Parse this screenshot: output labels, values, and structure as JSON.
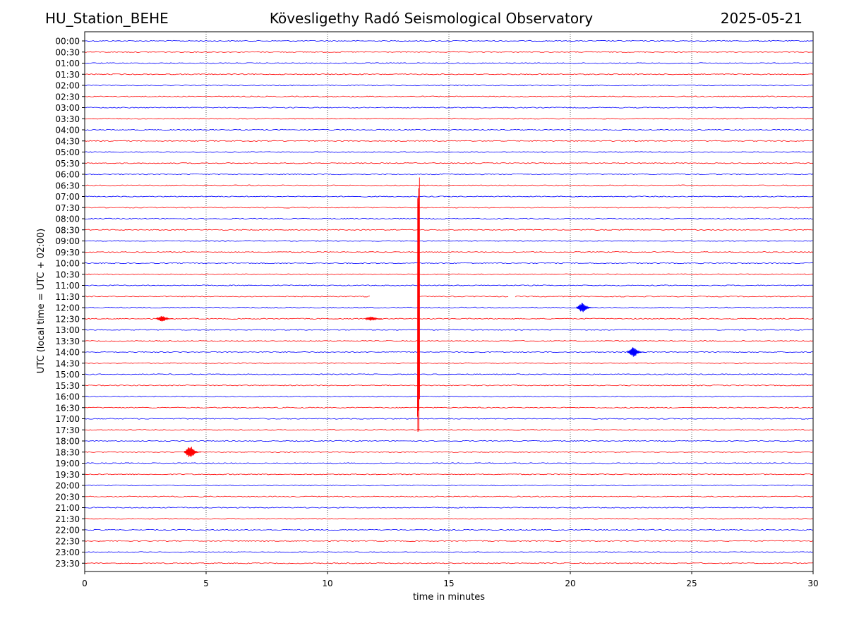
{
  "header": {
    "station": "HU_Station_BEHE",
    "observatory": "Kövesligethy Radó Seismological Observatory",
    "date": "2025-05-21"
  },
  "chart_data": {
    "type": "line",
    "title": "Kövesligethy Radó Seismological Observatory",
    "xlabel": "time in minutes",
    "ylabel": "UTC (local time = UTC + 02:00)",
    "xlim": [
      0,
      30
    ],
    "xticks": [
      0,
      5,
      10,
      15,
      20,
      25,
      30
    ],
    "vertical_gridlines_at": [
      5,
      10,
      15,
      20,
      25
    ],
    "trace_colors": [
      "#0000ff",
      "#ff0000"
    ],
    "rows": [
      "00:00",
      "00:30",
      "01:00",
      "01:30",
      "02:00",
      "02:30",
      "03:00",
      "03:30",
      "04:00",
      "04:30",
      "05:00",
      "05:30",
      "06:00",
      "06:30",
      "07:00",
      "07:30",
      "08:00",
      "08:30",
      "09:00",
      "09:30",
      "10:00",
      "10:30",
      "11:00",
      "11:30",
      "12:00",
      "12:30",
      "13:00",
      "13:30",
      "14:00",
      "14:30",
      "15:00",
      "15:30",
      "16:00",
      "16:30",
      "17:00",
      "17:30",
      "18:00",
      "18:30",
      "19:00",
      "19:30",
      "20:00",
      "20:30",
      "21:00",
      "21:30",
      "22:00",
      "22:30",
      "23:00",
      "23:30"
    ],
    "events": [
      {
        "row": "11:30",
        "minute": 13.75,
        "amplitude_rows": 13.0
      },
      {
        "row": "12:00",
        "minute": 20.6,
        "amplitude_rows": 0.45
      },
      {
        "row": "12:30",
        "minute": 3.3,
        "amplitude_rows": 0.25
      },
      {
        "row": "12:30",
        "minute": 11.9,
        "amplitude_rows": 0.2
      },
      {
        "row": "14:00",
        "minute": 22.7,
        "amplitude_rows": 0.45
      },
      {
        "row": "18:30",
        "minute": 4.45,
        "amplitude_rows": 0.55
      }
    ],
    "gaps": [
      {
        "row": "11:30",
        "start_minute": 11.8,
        "end_minute": 13.7
      },
      {
        "row": "11:30",
        "start_minute": 17.5,
        "end_minute": 17.7
      }
    ]
  }
}
